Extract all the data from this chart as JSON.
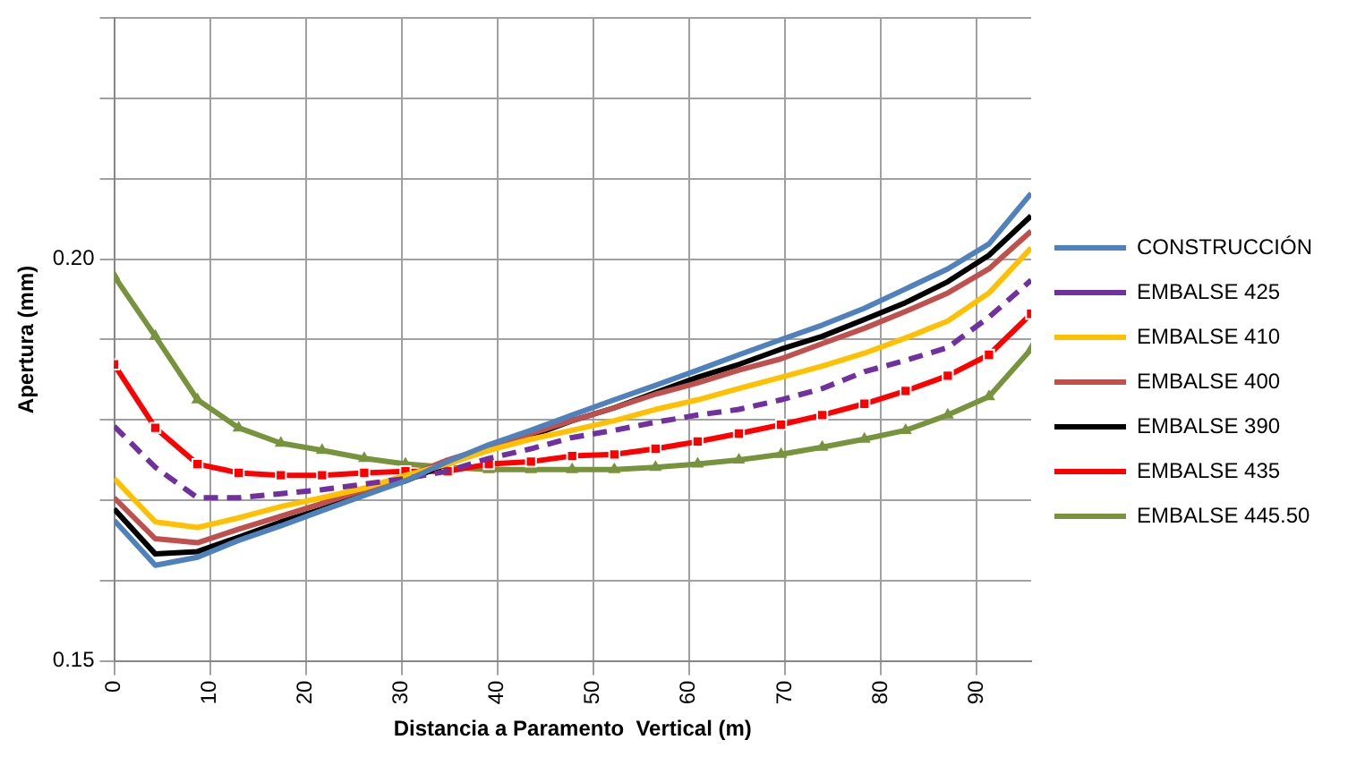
{
  "chart_data": {
    "type": "line",
    "xlabel": "Distancia a Paramento  Vertical (m)",
    "ylabel": "Apertura (mm)",
    "x": [
      0,
      4.3,
      8.7,
      13,
      17.4,
      21.7,
      26.1,
      30.4,
      34.8,
      39.1,
      43.5,
      47.8,
      52.2,
      56.5,
      60.9,
      65.2,
      69.6,
      73.9,
      78.3,
      82.6,
      87,
      91.3,
      95.7
    ],
    "xlim": [
      0,
      95.7
    ],
    "xticks": [
      0,
      10,
      20,
      30,
      40,
      50,
      60,
      70,
      80,
      90
    ],
    "ylim": [
      0.15,
      0.23
    ],
    "yticks": [
      0.15,
      {
        "value": 0.16,
        "label": null
      },
      {
        "value": 0.17,
        "label": null
      },
      {
        "value": 0.18,
        "label": null
      },
      {
        "value": 0.19,
        "label": null
      },
      {
        "value": 0.2,
        "label": "0.20"
      },
      {
        "value": 0.21,
        "label": null
      },
      {
        "value": 0.22,
        "label": null
      },
      {
        "value": 0.23,
        "label": null
      }
    ],
    "grid": true,
    "legend": "right",
    "series": [
      {
        "name": "CONSTRUCCIÓN",
        "color": "#4f81bd",
        "marker": "none",
        "line_style": "solid",
        "values": [
          0.1675,
          0.1619,
          0.1629,
          0.165,
          0.1668,
          0.1687,
          0.1706,
          0.1724,
          0.1748,
          0.1769,
          0.1787,
          0.1806,
          0.1825,
          0.1843,
          0.1862,
          0.1881,
          0.19,
          0.1918,
          0.1939,
          0.1963,
          0.1988,
          0.2019,
          0.2082
        ]
      },
      {
        "name": "EMBALSE 425",
        "color": "#7030a0",
        "marker": "none",
        "line_style": "dashed",
        "values": [
          0.1792,
          0.1741,
          0.1703,
          0.1703,
          0.1708,
          0.1713,
          0.172,
          0.1727,
          0.1736,
          0.1752,
          0.1764,
          0.1778,
          0.1787,
          0.1797,
          0.1806,
          0.1813,
          0.1825,
          0.1839,
          0.186,
          0.1874,
          0.189,
          0.1928,
          0.1974
        ]
      },
      {
        "name": "EMBALSE 410",
        "color": "#ffc000",
        "marker": "none",
        "line_style": "solid",
        "values": [
          0.1727,
          0.1673,
          0.1666,
          0.1678,
          0.1692,
          0.1703,
          0.1715,
          0.1731,
          0.1745,
          0.1762,
          0.1776,
          0.1787,
          0.1799,
          0.1813,
          0.1825,
          0.1839,
          0.1853,
          0.1867,
          0.1883,
          0.1902,
          0.1923,
          0.1958,
          0.2014
        ]
      },
      {
        "name": "EMBALSE 400",
        "color": "#c0504d",
        "marker": "none",
        "line_style": "solid",
        "values": [
          0.1703,
          0.1652,
          0.1647,
          0.1664,
          0.168,
          0.1696,
          0.1713,
          0.1729,
          0.175,
          0.1766,
          0.1783,
          0.1799,
          0.1815,
          0.1832,
          0.1846,
          0.1862,
          0.1876,
          0.1895,
          0.1914,
          0.1935,
          0.1958,
          0.1988,
          0.2035
        ]
      },
      {
        "name": "EMBALSE 390",
        "color": "#000000",
        "marker": "none",
        "line_style": "solid",
        "values": [
          0.1689,
          0.1633,
          0.1636,
          0.1654,
          0.1673,
          0.1689,
          0.1708,
          0.1724,
          0.1745,
          0.1764,
          0.178,
          0.1799,
          0.1815,
          0.1834,
          0.1853,
          0.1869,
          0.1888,
          0.1904,
          0.1925,
          0.1946,
          0.1972,
          0.2005,
          0.2054
        ]
      },
      {
        "name": "EMBALSE 435",
        "color": "#ff0000",
        "marker": "square",
        "line_style": "solid",
        "values": [
          0.1869,
          0.179,
          0.1745,
          0.1734,
          0.1731,
          0.1731,
          0.1734,
          0.1736,
          0.1736,
          0.1745,
          0.1748,
          0.1755,
          0.1757,
          0.1764,
          0.1773,
          0.1783,
          0.1794,
          0.1806,
          0.182,
          0.1836,
          0.1855,
          0.1881,
          0.1932
        ]
      },
      {
        "name": "EMBALSE 445.50",
        "color": "#77933c",
        "marker": "triangle",
        "line_style": "solid",
        "values": [
          0.1979,
          0.1904,
          0.1825,
          0.179,
          0.1771,
          0.1762,
          0.1752,
          0.1745,
          0.1741,
          0.1738,
          0.1738,
          0.1738,
          0.1738,
          0.1741,
          0.1745,
          0.175,
          0.1757,
          0.1766,
          0.1776,
          0.1787,
          0.1806,
          0.1829,
          0.1888
        ]
      }
    ]
  }
}
